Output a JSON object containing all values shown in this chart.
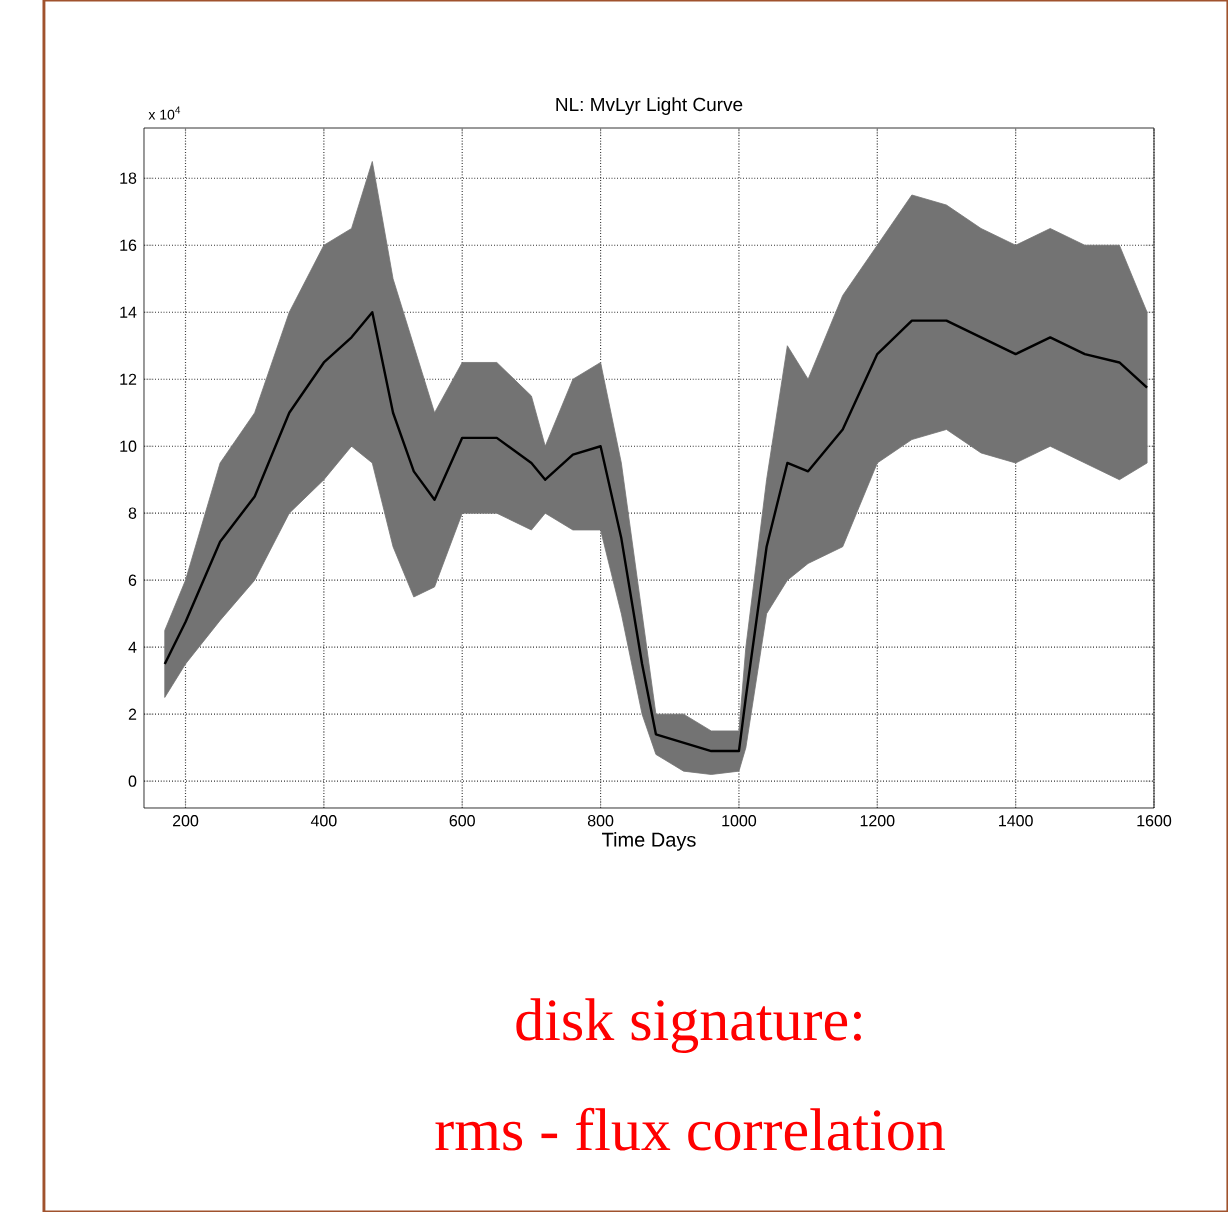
{
  "chart_data": {
    "type": "line",
    "title": "NL: MvLyr Light Curve",
    "xlabel": "Time Days",
    "annotations": [
      "x 10$^{4}$",
      "disk signature:",
      "rms - flux correlation"
    ],
    "x": [
      170,
      200,
      250,
      300,
      350,
      400,
      440,
      470,
      500,
      530,
      560,
      600,
      650,
      700,
      720,
      760,
      800,
      830,
      860,
      880,
      920,
      960,
      1000,
      1010,
      1040,
      1070,
      1100,
      1150,
      1200,
      1250,
      1300,
      1350,
      1400,
      1450,
      1500,
      1550,
      1590
    ],
    "series": [
      {
        "color": "#000000",
        "values": [
          3.5,
          4.75,
          7.15,
          8.5,
          11,
          12.5,
          13.25,
          14,
          11,
          9.25,
          8.4,
          10.25,
          10.25,
          9.5,
          9,
          9.75,
          10,
          7.25,
          3.5,
          1.4,
          1.15,
          0.9,
          0.9,
          2.5,
          7,
          9.5,
          9.25,
          10.5,
          12.75,
          13.75,
          13.75,
          13.25,
          12.75,
          13.25,
          12.75,
          12.5,
          11.75
        ],
        "lower": [
          2.5,
          3.5,
          4.8,
          6,
          8,
          9,
          10,
          9.5,
          7,
          5.5,
          5.8,
          8,
          8,
          7.5,
          8,
          7.5,
          7.5,
          5,
          2,
          0.8,
          0.3,
          0.2,
          0.3,
          1,
          5,
          6,
          6.5,
          7,
          9.5,
          10.2,
          10.5,
          9.8,
          9.5,
          10,
          9.5,
          9,
          9.5
        ],
        "upper": [
          4.5,
          6,
          9.5,
          11,
          14,
          16,
          16.5,
          18.5,
          15,
          13,
          11,
          12.5,
          12.5,
          11.5,
          10,
          12,
          12.5,
          9.5,
          5,
          2,
          2,
          1.5,
          1.5,
          4,
          9,
          13,
          12,
          14.5,
          16,
          17.5,
          17.2,
          16.5,
          16,
          16.5,
          16,
          16,
          14
        ]
      }
    ],
    "xlim": [
      140,
      1600
    ],
    "ylim": [
      -0.8,
      19.5
    ],
    "xticks": [
      200,
      400,
      600,
      800,
      1000,
      1200,
      1400,
      1600
    ],
    "yticks": [
      0,
      2,
      4,
      6,
      8,
      10,
      12,
      14,
      16,
      18
    ],
    "grid": true
  }
}
